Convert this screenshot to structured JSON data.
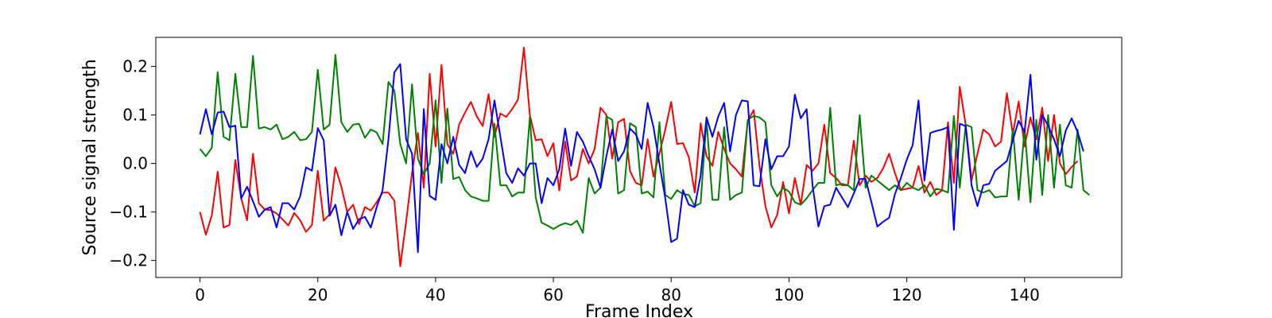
{
  "chart_data": {
    "type": "line",
    "xlabel": "Frame Index",
    "ylabel": "Source signal strength",
    "xlim": [
      -7.5,
      156.5
    ],
    "ylim": [
      -0.235,
      0.26
    ],
    "x_ticks": [
      0,
      20,
      40,
      60,
      80,
      100,
      120,
      140
    ],
    "y_ticks": [
      -0.2,
      -0.1,
      0.0,
      0.1,
      0.2
    ],
    "y_tick_labels": [
      "−0.2",
      "−0.1",
      "0.0",
      "0.1",
      "0.2"
    ],
    "x_tick_labels": [
      "0",
      "20",
      "40",
      "60",
      "80",
      "100",
      "120",
      "140"
    ],
    "grid": false,
    "series": [
      {
        "color": "#ff0000",
        "values": [
          -0.1,
          -0.147,
          -0.107,
          -0.017,
          -0.132,
          -0.127,
          0.007,
          -0.072,
          -0.117,
          0.02,
          -0.082,
          -0.095,
          -0.096,
          -0.103,
          -0.115,
          -0.128,
          -0.102,
          -0.117,
          -0.141,
          -0.127,
          -0.015,
          -0.118,
          -0.105,
          -0.008,
          -0.048,
          -0.1,
          -0.085,
          -0.125,
          -0.09,
          -0.097,
          -0.08,
          -0.06,
          -0.06,
          -0.077,
          -0.212,
          -0.12,
          -0.02,
          0.063,
          -0.05,
          0.185,
          0.035,
          0.203,
          0.04,
          0.02,
          0.08,
          0.105,
          0.127,
          0.097,
          0.077,
          0.143,
          0.055,
          0.103,
          0.096,
          0.112,
          0.132,
          0.239,
          0.1,
          0.048,
          0.05,
          0.015,
          0.042,
          -0.056,
          0.045,
          -0.035,
          -0.027,
          0.03,
          0.0,
          0.03,
          0.115,
          0.1,
          0.01,
          0.085,
          0.092,
          -0.015,
          -0.04,
          -0.045,
          0.05,
          -0.027,
          0.02,
          0.07,
          0.127,
          0.04,
          0.042,
          0.013,
          -0.06,
          0.083,
          0.015,
          -0.005,
          0.065,
          0.03,
          0.0,
          -0.012,
          -0.027,
          0.088,
          0.11,
          -0.005,
          -0.088,
          -0.132,
          -0.106,
          -0.038,
          -0.103,
          -0.03,
          -0.085,
          -0.003,
          -0.015,
          0.0,
          0.08,
          -0.02,
          -0.03,
          -0.045,
          -0.045,
          0.047,
          -0.045,
          -0.025,
          -0.038,
          -0.03,
          -0.01,
          0.02,
          -0.02,
          -0.055,
          -0.052,
          -0.05,
          -0.005,
          -0.06,
          -0.038,
          -0.065,
          -0.055,
          0.085,
          -0.04,
          0.158,
          0.08,
          -0.035,
          0.02,
          0.07,
          0.06,
          0.035,
          0.045,
          0.145,
          0.06,
          0.128,
          0.035,
          0.095,
          0.05,
          0.115,
          0.005,
          0.1,
          0.0,
          -0.022,
          -0.007,
          0.005
        ]
      },
      {
        "color": "#008000",
        "values": [
          0.03,
          0.015,
          0.032,
          0.188,
          0.055,
          0.048,
          0.185,
          0.075,
          0.075,
          0.222,
          0.072,
          0.075,
          0.07,
          0.08,
          0.05,
          0.055,
          0.065,
          0.048,
          0.05,
          0.065,
          0.193,
          0.07,
          0.08,
          0.224,
          0.085,
          0.065,
          0.08,
          0.082,
          0.053,
          0.07,
          0.064,
          0.04,
          0.168,
          0.15,
          0.04,
          0.0,
          0.163,
          0.01,
          -0.022,
          0.0,
          0.13,
          -0.04,
          0.113,
          -0.032,
          -0.028,
          -0.055,
          -0.068,
          -0.072,
          -0.077,
          -0.077,
          0.082,
          -0.045,
          -0.045,
          -0.068,
          -0.06,
          -0.06,
          0.095,
          -0.07,
          -0.122,
          -0.128,
          -0.135,
          -0.128,
          -0.123,
          -0.127,
          -0.118,
          -0.143,
          -0.03,
          -0.062,
          -0.05,
          0.097,
          0.09,
          -0.062,
          -0.055,
          0.083,
          0.075,
          -0.062,
          -0.058,
          -0.07,
          0.085,
          -0.065,
          -0.073,
          -0.055,
          -0.063,
          -0.065,
          -0.088,
          -0.082,
          0.09,
          -0.075,
          -0.075,
          0.075,
          -0.075,
          -0.065,
          -0.06,
          0.09,
          0.098,
          0.095,
          0.085,
          -0.045,
          -0.068,
          -0.05,
          -0.058,
          -0.08,
          -0.085,
          -0.072,
          -0.055,
          -0.04,
          -0.04,
          0.115,
          -0.045,
          -0.042,
          -0.045,
          -0.055,
          0.1,
          -0.05,
          -0.025,
          -0.035,
          -0.045,
          -0.055,
          -0.045,
          -0.055,
          -0.04,
          -0.05,
          -0.055,
          -0.045,
          -0.068,
          -0.052,
          -0.055,
          -0.06,
          0.098,
          -0.05,
          0.08,
          0.075,
          -0.055,
          -0.06,
          -0.055,
          -0.07,
          -0.068,
          -0.068,
          0.072,
          -0.075,
          0.072,
          -0.08,
          0.09,
          -0.065,
          0.1,
          -0.05,
          0.08,
          -0.045,
          -0.05,
          0.07,
          -0.055,
          -0.065
        ]
      },
      {
        "color": "#0000ff",
        "values": [
          0.06,
          0.112,
          0.06,
          0.105,
          0.107,
          0.075,
          0.078,
          -0.072,
          -0.048,
          -0.078,
          -0.11,
          -0.095,
          -0.09,
          -0.132,
          -0.082,
          -0.082,
          -0.095,
          -0.068,
          -0.008,
          -0.015,
          0.073,
          0.048,
          -0.108,
          -0.085,
          -0.148,
          -0.1,
          -0.135,
          -0.115,
          -0.11,
          -0.132,
          -0.09,
          -0.055,
          0.05,
          0.188,
          0.205,
          0.05,
          0.02,
          -0.183,
          0.112,
          -0.067,
          -0.075,
          0.04,
          0.0,
          0.055,
          -0.003,
          -0.02,
          0.025,
          -0.007,
          0.01,
          0.05,
          0.13,
          0.055,
          -0.02,
          -0.04,
          -0.01,
          -0.025,
          -0.0,
          -0.0,
          -0.082,
          -0.03,
          -0.045,
          -0.012,
          0.072,
          -0.005,
          0.065,
          0.045,
          0.015,
          -0.012,
          -0.05,
          0.015,
          0.07,
          0.005,
          0.025,
          0.072,
          0.06,
          0.03,
          0.125,
          0.075,
          0.0,
          -0.072,
          -0.162,
          -0.155,
          -0.055,
          -0.085,
          -0.09,
          -0.025,
          0.095,
          0.055,
          0.097,
          0.125,
          0.025,
          0.1,
          0.13,
          0.128,
          -0.045,
          -0.047,
          0.05,
          -0.012,
          0.015,
          0.015,
          0.035,
          0.142,
          0.093,
          0.112,
          -0.045,
          -0.13,
          -0.088,
          -0.085,
          -0.05,
          -0.07,
          -0.09,
          -0.062,
          -0.032,
          -0.032,
          -0.08,
          -0.13,
          -0.12,
          -0.112,
          -0.063,
          -0.03,
          0.008,
          0.038,
          0.13,
          -0.035,
          0.063,
          0.067,
          0.07,
          0.075,
          -0.137,
          0.082,
          0.077,
          -0.045,
          -0.088,
          -0.045,
          -0.042,
          -0.015,
          -0.005,
          0.005,
          0.048,
          0.088,
          0.065,
          0.183,
          0.008,
          0.1,
          0.078,
          0.05,
          0.015,
          0.068,
          0.093,
          0.065,
          0.025
        ]
      }
    ]
  }
}
